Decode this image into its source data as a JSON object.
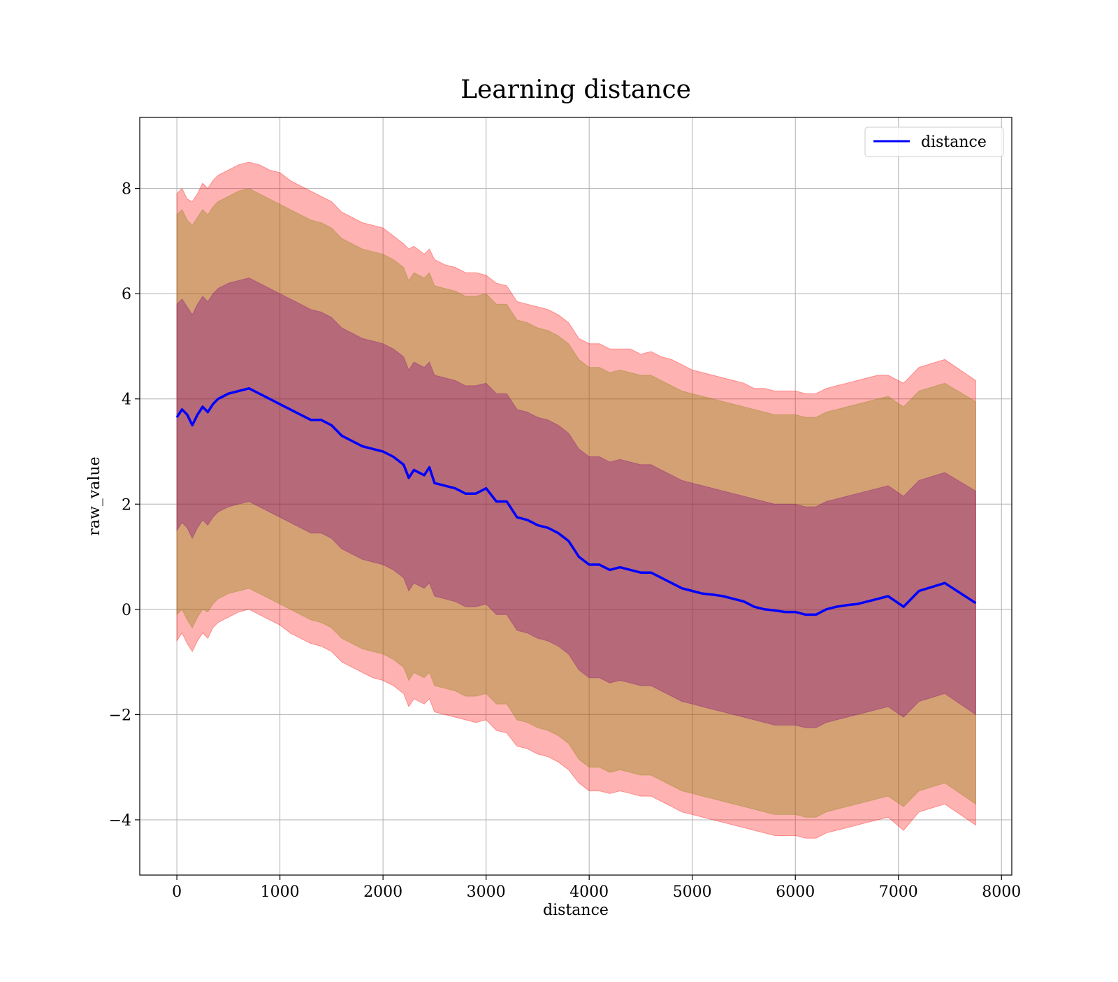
{
  "chart_data": {
    "type": "line",
    "title": "Learning distance",
    "xlabel": "distance",
    "ylabel": "raw_value",
    "xlim": [
      -360,
      8100
    ],
    "ylim": [
      -5.05,
      9.35
    ],
    "xticks": [
      0,
      1000,
      2000,
      3000,
      4000,
      5000,
      6000,
      7000,
      8000
    ],
    "xtick_labels": [
      "0",
      "1000",
      "2000",
      "3000",
      "4000",
      "5000",
      "6000",
      "7000",
      "8000"
    ],
    "yticks": [
      -4,
      -2,
      0,
      2,
      4,
      6,
      8
    ],
    "ytick_labels": [
      "−4",
      "−2",
      "0",
      "2",
      "4",
      "6",
      "8"
    ],
    "grid": true,
    "legend_position": "upper right",
    "colors": {
      "line": "#0000ff",
      "band_outer": "#ff0000",
      "band_middle": "#808000",
      "band_inner": "#800080",
      "grid": "#b0b0b0"
    },
    "series": [
      {
        "name": "distance",
        "x": [
          0,
          50,
          100,
          150,
          200,
          250,
          300,
          350,
          400,
          450,
          500,
          600,
          700,
          800,
          900,
          1000,
          1100,
          1200,
          1300,
          1400,
          1500,
          1600,
          1700,
          1800,
          1900,
          2000,
          2100,
          2200,
          2250,
          2300,
          2400,
          2450,
          2500,
          2600,
          2700,
          2800,
          2900,
          3000,
          3100,
          3200,
          3300,
          3400,
          3500,
          3600,
          3700,
          3800,
          3900,
          4000,
          4100,
          4200,
          4300,
          4400,
          4500,
          4600,
          4700,
          4800,
          4900,
          5000,
          5100,
          5200,
          5300,
          5400,
          5500,
          5600,
          5700,
          5800,
          5900,
          6000,
          6100,
          6200,
          6300,
          6400,
          6500,
          6600,
          6700,
          6800,
          6900,
          7050,
          7200,
          7450,
          7750
        ],
        "y": [
          3.65,
          3.8,
          3.7,
          3.5,
          3.7,
          3.85,
          3.75,
          3.9,
          4.0,
          4.05,
          4.1,
          4.15,
          4.2,
          4.1,
          4.0,
          3.9,
          3.8,
          3.7,
          3.6,
          3.6,
          3.5,
          3.3,
          3.2,
          3.1,
          3.05,
          3.0,
          2.9,
          2.75,
          2.5,
          2.65,
          2.55,
          2.7,
          2.4,
          2.35,
          2.3,
          2.2,
          2.2,
          2.3,
          2.05,
          2.05,
          1.75,
          1.7,
          1.6,
          1.55,
          1.45,
          1.3,
          1.0,
          0.85,
          0.85,
          0.75,
          0.8,
          0.75,
          0.7,
          0.7,
          0.6,
          0.5,
          0.4,
          0.35,
          0.3,
          0.28,
          0.25,
          0.2,
          0.15,
          0.05,
          0.0,
          -0.02,
          -0.05,
          -0.05,
          -0.1,
          -0.1,
          0.0,
          0.05,
          0.08,
          0.1,
          0.15,
          0.2,
          0.25,
          0.05,
          0.35,
          0.5,
          0.12
        ],
        "band_outer_upper": [
          7.9,
          8.0,
          7.8,
          7.75,
          7.9,
          8.1,
          8.0,
          8.15,
          8.25,
          8.3,
          8.35,
          8.45,
          8.5,
          8.45,
          8.35,
          8.3,
          8.15,
          8.05,
          7.95,
          7.85,
          7.75,
          7.55,
          7.45,
          7.35,
          7.3,
          7.25,
          7.1,
          6.95,
          6.85,
          6.9,
          6.75,
          6.85,
          6.65,
          6.55,
          6.5,
          6.4,
          6.4,
          6.35,
          6.2,
          6.15,
          5.85,
          5.8,
          5.75,
          5.7,
          5.6,
          5.45,
          5.15,
          5.05,
          5.05,
          4.95,
          4.95,
          4.95,
          4.85,
          4.9,
          4.8,
          4.75,
          4.65,
          4.55,
          4.5,
          4.45,
          4.4,
          4.35,
          4.3,
          4.2,
          4.2,
          4.15,
          4.15,
          4.15,
          4.1,
          4.1,
          4.2,
          4.25,
          4.3,
          4.35,
          4.4,
          4.45,
          4.45,
          4.3,
          4.6,
          4.75,
          4.35
        ],
        "band_outer_lower": [
          -0.6,
          -0.45,
          -0.65,
          -0.8,
          -0.6,
          -0.45,
          -0.55,
          -0.35,
          -0.25,
          -0.2,
          -0.15,
          -0.05,
          0.0,
          -0.1,
          -0.2,
          -0.3,
          -0.45,
          -0.55,
          -0.65,
          -0.7,
          -0.8,
          -1.0,
          -1.1,
          -1.2,
          -1.3,
          -1.35,
          -1.45,
          -1.6,
          -1.85,
          -1.7,
          -1.8,
          -1.7,
          -1.95,
          -2.0,
          -2.05,
          -2.1,
          -2.15,
          -2.1,
          -2.3,
          -2.35,
          -2.6,
          -2.65,
          -2.75,
          -2.8,
          -2.9,
          -3.05,
          -3.3,
          -3.45,
          -3.45,
          -3.5,
          -3.45,
          -3.5,
          -3.55,
          -3.55,
          -3.65,
          -3.75,
          -3.85,
          -3.9,
          -3.95,
          -4.0,
          -4.05,
          -4.1,
          -4.15,
          -4.2,
          -4.25,
          -4.3,
          -4.3,
          -4.3,
          -4.35,
          -4.35,
          -4.25,
          -4.2,
          -4.15,
          -4.1,
          -4.05,
          -4.0,
          -3.95,
          -4.2,
          -3.85,
          -3.7,
          -4.1
        ],
        "band_middle_upper": [
          7.5,
          7.6,
          7.4,
          7.3,
          7.45,
          7.6,
          7.5,
          7.65,
          7.75,
          7.8,
          7.85,
          7.95,
          8.0,
          7.9,
          7.8,
          7.7,
          7.6,
          7.5,
          7.4,
          7.35,
          7.25,
          7.05,
          6.95,
          6.85,
          6.8,
          6.75,
          6.65,
          6.5,
          6.25,
          6.4,
          6.3,
          6.4,
          6.15,
          6.1,
          6.05,
          5.95,
          5.95,
          6.0,
          5.8,
          5.8,
          5.5,
          5.45,
          5.35,
          5.3,
          5.2,
          5.05,
          4.75,
          4.6,
          4.6,
          4.5,
          4.55,
          4.5,
          4.45,
          4.45,
          4.35,
          4.25,
          4.15,
          4.1,
          4.05,
          4.0,
          3.95,
          3.9,
          3.85,
          3.8,
          3.75,
          3.7,
          3.7,
          3.7,
          3.65,
          3.65,
          3.75,
          3.8,
          3.85,
          3.9,
          3.95,
          4.0,
          4.05,
          3.85,
          4.15,
          4.3,
          3.95
        ],
        "band_middle_lower": [
          -0.1,
          0.0,
          -0.2,
          -0.35,
          -0.15,
          0.0,
          -0.05,
          0.1,
          0.2,
          0.25,
          0.3,
          0.35,
          0.4,
          0.3,
          0.2,
          0.1,
          0.0,
          -0.1,
          -0.2,
          -0.25,
          -0.35,
          -0.55,
          -0.65,
          -0.75,
          -0.8,
          -0.85,
          -0.95,
          -1.1,
          -1.35,
          -1.2,
          -1.3,
          -1.2,
          -1.45,
          -1.5,
          -1.55,
          -1.65,
          -1.65,
          -1.6,
          -1.8,
          -1.8,
          -2.1,
          -2.15,
          -2.25,
          -2.3,
          -2.4,
          -2.55,
          -2.85,
          -3.0,
          -3.0,
          -3.1,
          -3.05,
          -3.1,
          -3.15,
          -3.15,
          -3.25,
          -3.35,
          -3.45,
          -3.5,
          -3.55,
          -3.6,
          -3.65,
          -3.7,
          -3.75,
          -3.8,
          -3.85,
          -3.9,
          -3.9,
          -3.9,
          -3.95,
          -3.95,
          -3.85,
          -3.8,
          -3.75,
          -3.7,
          -3.65,
          -3.6,
          -3.55,
          -3.75,
          -3.45,
          -3.3,
          -3.7
        ],
        "band_inner_upper": [
          5.8,
          5.9,
          5.75,
          5.6,
          5.8,
          5.95,
          5.85,
          6.0,
          6.1,
          6.15,
          6.2,
          6.25,
          6.3,
          6.2,
          6.1,
          6.0,
          5.9,
          5.8,
          5.7,
          5.65,
          5.55,
          5.35,
          5.25,
          5.15,
          5.1,
          5.05,
          4.95,
          4.8,
          4.55,
          4.7,
          4.6,
          4.7,
          4.45,
          4.4,
          4.35,
          4.25,
          4.25,
          4.3,
          4.1,
          4.1,
          3.8,
          3.75,
          3.65,
          3.6,
          3.5,
          3.35,
          3.05,
          2.9,
          2.9,
          2.8,
          2.85,
          2.8,
          2.75,
          2.75,
          2.65,
          2.55,
          2.45,
          2.4,
          2.35,
          2.3,
          2.25,
          2.2,
          2.15,
          2.1,
          2.05,
          2.0,
          2.0,
          2.0,
          1.95,
          1.95,
          2.05,
          2.1,
          2.15,
          2.2,
          2.25,
          2.3,
          2.35,
          2.15,
          2.45,
          2.6,
          2.25
        ],
        "band_inner_lower": [
          1.5,
          1.65,
          1.55,
          1.35,
          1.55,
          1.7,
          1.6,
          1.75,
          1.85,
          1.9,
          1.95,
          2.0,
          2.05,
          1.95,
          1.85,
          1.75,
          1.65,
          1.55,
          1.45,
          1.45,
          1.35,
          1.15,
          1.05,
          0.95,
          0.9,
          0.85,
          0.75,
          0.6,
          0.35,
          0.5,
          0.4,
          0.5,
          0.25,
          0.2,
          0.15,
          0.05,
          0.05,
          0.1,
          -0.1,
          -0.1,
          -0.4,
          -0.45,
          -0.55,
          -0.6,
          -0.7,
          -0.85,
          -1.15,
          -1.3,
          -1.3,
          -1.4,
          -1.35,
          -1.4,
          -1.45,
          -1.45,
          -1.55,
          -1.65,
          -1.75,
          -1.8,
          -1.85,
          -1.9,
          -1.95,
          -2.0,
          -2.05,
          -2.1,
          -2.15,
          -2.2,
          -2.2,
          -2.2,
          -2.25,
          -2.25,
          -2.15,
          -2.1,
          -2.05,
          -2.0,
          -1.95,
          -1.9,
          -1.85,
          -2.05,
          -1.75,
          -1.6,
          -2.0
        ]
      }
    ]
  }
}
